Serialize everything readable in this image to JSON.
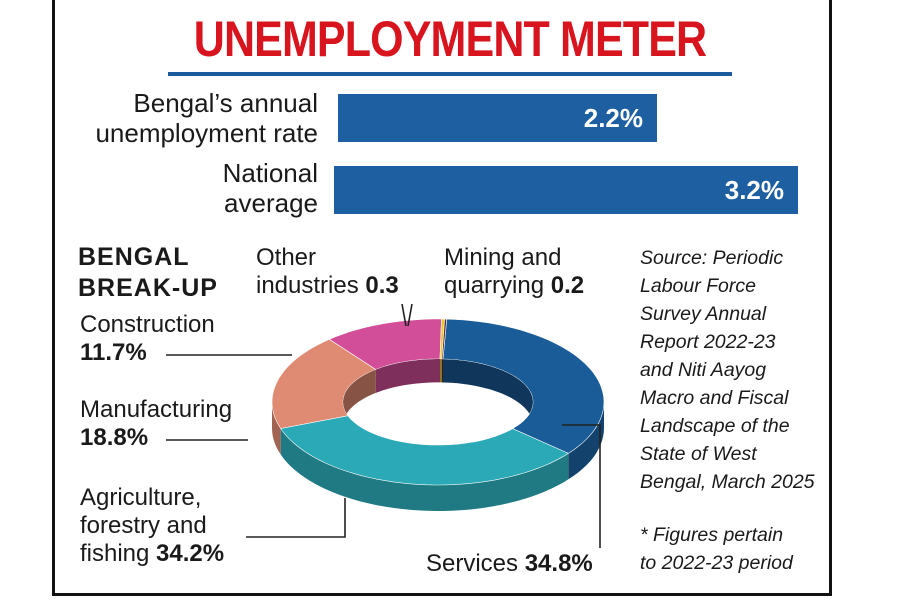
{
  "title": "UNEMPLOYMENT METER",
  "bars": [
    {
      "label_line1": "Bengal’s annual",
      "label_line2": "unemployment rate",
      "value_label": "2.2%",
      "value": 2.2
    },
    {
      "label_line1": "National",
      "label_line2": "average",
      "value_label": "3.2%",
      "value": 3.2
    }
  ],
  "breakup": {
    "heading_line1": "BENGAL",
    "heading_line2": "BREAK-UP"
  },
  "labels": {
    "other_line1": "Other",
    "other_line2": "industries",
    "other_val": "0.3",
    "mining_line1": "Mining and",
    "mining_line2": "quarrying",
    "mining_val": "0.2",
    "construction_name": "Construction",
    "construction_val": "11.7%",
    "manufacturing_name": "Manufacturing",
    "manufacturing_val": "18.8%",
    "agri_line1": "Agriculture,",
    "agri_line2": "forestry and",
    "agri_line3": "fishing",
    "agri_val": "34.2%",
    "services_name": "Services",
    "services_val": "34.8%"
  },
  "source_lines": [
    "Source: Periodic",
    "Labour Force",
    "Survey Annual",
    "Report 2022-23",
    "and Niti Aayog",
    "Macro and Fiscal",
    "Landscape of the",
    "State of West",
    "Bengal, March 2025"
  ],
  "note_lines": [
    "* Figures pertain",
    "to 2022-23 period"
  ],
  "chart_data": [
    {
      "type": "bar",
      "categories": [
        "Bengal’s annual unemployment rate",
        "National average"
      ],
      "values": [
        2.2,
        3.2
      ],
      "value_labels": [
        "2.2%",
        "3.2%"
      ],
      "title": "UNEMPLOYMENT METER"
    },
    {
      "type": "pie",
      "title": "BENGAL BREAK-UP",
      "categories": [
        "Services",
        "Agriculture, forestry and fishing",
        "Manufacturing",
        "Construction",
        "Other industries",
        "Mining and quarrying"
      ],
      "values": [
        34.8,
        34.2,
        18.8,
        11.7,
        0.3,
        0.2
      ],
      "colors": [
        "#1a5c97",
        "#2ba9b6",
        "#df8a72",
        "#d24e98",
        "#ecc92a",
        "#5b2e2e"
      ]
    }
  ],
  "colors": {
    "title": "#d8141e",
    "bar": "#1d5fa0"
  }
}
